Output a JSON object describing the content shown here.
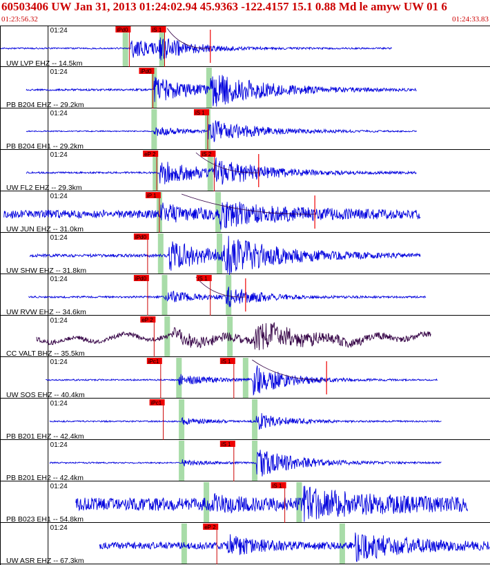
{
  "header": {
    "title": "60503406 UW Jan 31, 2013 01:24:02.94   45.9363 -122.4157 15.1 0.88 Md le amyw UW 01    6",
    "time_start": "01:23:56.32",
    "time_end": "01:24:33.83"
  },
  "colors": {
    "header_text": "#cc0000",
    "trace": "#0000dd",
    "trace_dark": "#330044",
    "pick_box": "#ee0000",
    "pick_text": "#000000",
    "pick_line": "#cc0000",
    "window": "#a8dca8",
    "grid": "#000000"
  },
  "chart_data": {
    "type": "line",
    "title": "60503406 UW Jan 31, 2013 01:24:02.94   45.9363 -122.4157 15.1 0.88 Md le amyw UW 01    6",
    "x_unit": "seconds",
    "xlim": [
      0,
      37.51
    ],
    "minute_label": "01:24",
    "minute_tick_s": 3.68,
    "panels": [
      {
        "label": "UW LVP EHZ -- 14.5km",
        "trace_start": 0.0,
        "trace_end": 30.0,
        "trace_color": "#0000dd",
        "dark": false,
        "noise": 0.04,
        "events": [
          {
            "t": 10.0,
            "amp": 0.55,
            "decay": 2.2
          },
          {
            "t": 12.2,
            "amp": 0.45,
            "decay": 3.0
          }
        ],
        "picks": [
          {
            "label": "iPd0",
            "t": 9.9
          },
          {
            "label": "iS 1",
            "t": 12.6
          }
        ],
        "windows": [
          9.6,
          12.4
        ],
        "theory_curve": {
          "from": 12.8,
          "to": 16.1
        },
        "theory_mark": 16.1
      },
      {
        "label": "PB B204 EHZ -- 29.2km",
        "trace_start": 2.0,
        "trace_end": 31.9,
        "trace_color": "#0000dd",
        "dark": false,
        "noise": 0.05,
        "events": [
          {
            "t": 11.8,
            "amp": 0.7,
            "decay": 3.2
          },
          {
            "t": 16.1,
            "amp": 0.8,
            "decay": 4.5
          }
        ],
        "picks": [
          {
            "label": "iPd0",
            "t": 11.7
          }
        ],
        "windows": [
          11.8,
          16.0
        ],
        "theory_curve": null,
        "theory_mark": null
      },
      {
        "label": "PB B204 EH1 -- 29.2km",
        "trace_start": 2.0,
        "trace_end": 31.9,
        "trace_color": "#0000dd",
        "dark": false,
        "noise": 0.03,
        "events": [
          {
            "t": 11.8,
            "amp": 0.25,
            "decay": 2.5
          },
          {
            "t": 15.9,
            "amp": 0.6,
            "decay": 4.0
          }
        ],
        "picks": [
          {
            "label": "iS 1",
            "t": 15.9
          }
        ],
        "windows": [
          11.8,
          15.9
        ],
        "theory_curve": null,
        "theory_mark": null
      },
      {
        "label": "UW FL2 EHZ -- 29.3km",
        "trace_start": 2.0,
        "trace_end": 31.9,
        "trace_color": "#0000dd",
        "dark": false,
        "noise": 0.05,
        "events": [
          {
            "t": 12.2,
            "amp": 0.65,
            "decay": 3.5
          },
          {
            "t": 16.4,
            "amp": 0.6,
            "decay": 4.0
          }
        ],
        "picks": [
          {
            "label": "eP 2",
            "t": 12.0
          },
          {
            "label": "iS 2",
            "t": 16.4
          }
        ],
        "windows": [
          11.9,
          16.1
        ],
        "theory_curve": {
          "from": 15.0,
          "to": 19.8
        },
        "theory_mark": 19.8
      },
      {
        "label": "UW JUN EHZ -- 31.0km",
        "trace_start": 0.3,
        "trace_end": 32.2,
        "trace_color": "#0000dd",
        "dark": false,
        "noise": 0.22,
        "events": [
          {
            "t": 12.3,
            "amp": 0.45,
            "decay": 2.5
          },
          {
            "t": 16.8,
            "amp": 0.55,
            "decay": 5.0
          }
        ],
        "picks": [
          {
            "label": "iP 1",
            "t": 12.2
          }
        ],
        "windows": [
          12.2,
          16.7
        ],
        "theory_curve": {
          "from": 13.9,
          "to": 24.1
        },
        "theory_mark": 24.1
      },
      {
        "label": "UW SHW EHZ -- 31.8km",
        "trace_start": 2.3,
        "trace_end": 32.2,
        "trace_color": "#0000dd",
        "dark": false,
        "noise": 0.08,
        "events": [
          {
            "t": 12.9,
            "amp": 0.8,
            "decay": 3.5
          },
          {
            "t": 17.0,
            "amp": 0.85,
            "decay": 4.8
          }
        ],
        "picks": [
          {
            "label": "iPd0",
            "t": 11.3
          }
        ],
        "windows": [
          12.3,
          16.8
        ],
        "theory_curve": null,
        "theory_mark": null
      },
      {
        "label": "UW RVW EHZ -- 34.6km",
        "trace_start": 2.2,
        "trace_end": 32.6,
        "trace_color": "#0000dd",
        "dark": false,
        "noise": 0.05,
        "events": [
          {
            "t": 12.6,
            "amp": 0.35,
            "decay": 2.5
          },
          {
            "t": 17.3,
            "amp": 0.55,
            "decay": 2.5
          }
        ],
        "picks": [
          {
            "label": "iPd0",
            "t": 11.3
          },
          {
            "label": "iS 1",
            "t": 16.1
          }
        ],
        "windows": [
          12.6,
          17.5
        ],
        "theory_curve": {
          "from": 15.0,
          "to": 18.8
        },
        "theory_mark": 18.8
      },
      {
        "label": "CC VALT BHZ -- 35.5km",
        "trace_start": 2.8,
        "trace_end": 33.0,
        "trace_color": "#330044",
        "dark": true,
        "noise": 0.12,
        "events": [
          {
            "t": 13.2,
            "amp": 0.35,
            "decay": 4.0
          },
          {
            "t": 19.5,
            "amp": 0.65,
            "decay": 4.0
          }
        ],
        "picks": [
          {
            "label": "eP 2",
            "t": 11.8
          }
        ],
        "windows": [
          12.8,
          17.6
        ],
        "theory_curve": null,
        "theory_mark": null
      },
      {
        "label": "UW SOS EHZ -- 40.4km",
        "trace_start": 3.5,
        "trace_end": 33.5,
        "trace_color": "#0000dd",
        "dark": false,
        "noise": 0.04,
        "events": [
          {
            "t": 13.7,
            "amp": 0.3,
            "decay": 2.5
          },
          {
            "t": 19.4,
            "amp": 0.85,
            "decay": 2.5
          }
        ],
        "picks": [
          {
            "label": "iPc1",
            "t": 12.3
          },
          {
            "label": "iS 1",
            "t": 17.9
          }
        ],
        "windows": [
          13.7,
          18.8
        ],
        "theory_curve": {
          "from": 19.3,
          "to": 25.0
        },
        "theory_mark": 25.0
      },
      {
        "label": "PB B201 EHZ -- 42.4km",
        "trace_start": 3.8,
        "trace_end": 33.8,
        "trace_color": "#0000dd",
        "dark": false,
        "noise": 0.04,
        "events": [
          {
            "t": 13.9,
            "amp": 0.2,
            "decay": 2.0
          },
          {
            "t": 19.6,
            "amp": 0.5,
            "decay": 2.2
          }
        ],
        "picks": [
          {
            "label": "iPc1",
            "t": 12.5
          }
        ],
        "windows": [
          13.9,
          19.5
        ],
        "theory_curve": null,
        "theory_mark": null
      },
      {
        "label": "PB B201 EH2 -- 42.4km",
        "trace_start": 3.8,
        "trace_end": 33.8,
        "trace_color": "#0000dd",
        "dark": false,
        "noise": 0.04,
        "events": [
          {
            "t": 13.9,
            "amp": 0.15,
            "decay": 2.0
          },
          {
            "t": 19.6,
            "amp": 0.8,
            "decay": 3.0
          }
        ],
        "picks": [
          {
            "label": "iS 1",
            "t": 17.9
          }
        ],
        "windows": [
          13.9,
          19.5
        ],
        "theory_curve": null,
        "theory_mark": null
      },
      {
        "label": "PB B023 EH1 -- 54.8km",
        "trace_start": 5.8,
        "trace_end": 35.8,
        "trace_color": "#0000dd",
        "dark": false,
        "noise": 0.35,
        "events": [
          {
            "t": 16.0,
            "amp": 0.3,
            "decay": 2.0
          },
          {
            "t": 23.2,
            "amp": 0.65,
            "decay": 5.0
          }
        ],
        "picks": [
          {
            "label": "iS 1",
            "t": 21.8
          }
        ],
        "windows": [
          15.8,
          22.9
        ],
        "theory_curve": null,
        "theory_mark": null
      },
      {
        "label": "UW ASR EHZ -- 67.3km",
        "trace_start": 7.6,
        "trace_end": 37.5,
        "trace_color": "#0000dd",
        "dark": false,
        "noise": 0.18,
        "events": [
          {
            "t": 17.4,
            "amp": 0.5,
            "decay": 2.5
          },
          {
            "t": 27.2,
            "amp": 0.75,
            "decay": 4.0
          }
        ],
        "picks": [
          {
            "label": "eP 2",
            "t": 16.6
          }
        ],
        "windows": [
          14.1,
          26.2
        ],
        "theory_curve": null,
        "theory_mark": null
      }
    ]
  }
}
